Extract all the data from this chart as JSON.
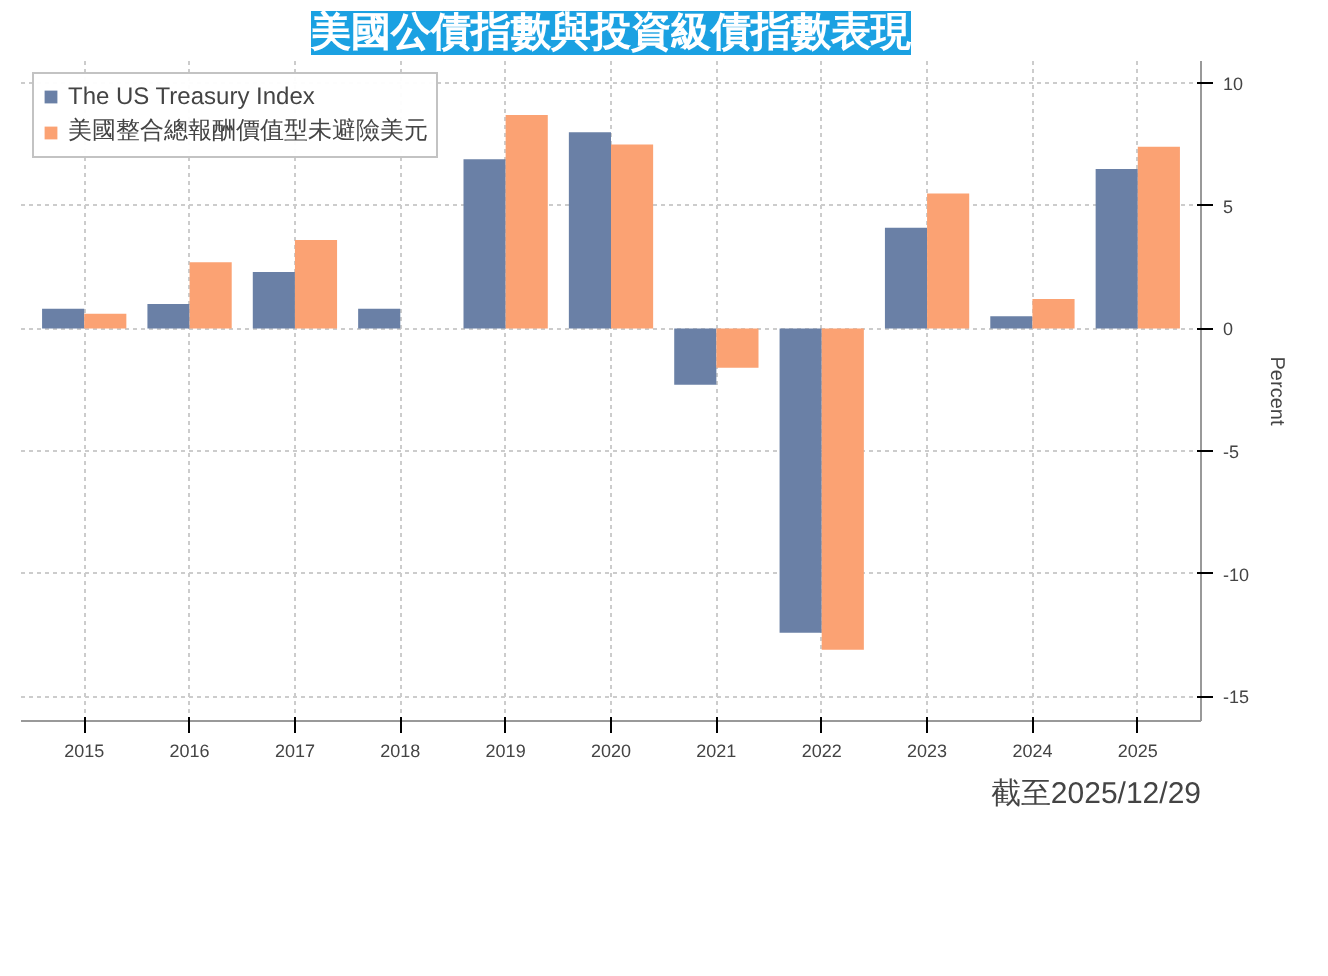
{
  "chart_data": {
    "type": "bar",
    "title": "美國公債指數與投資級債指數表現",
    "ylabel": "Percent",
    "categories": [
      "2015",
      "2016",
      "2017",
      "2018",
      "2019",
      "2020",
      "2021",
      "2022",
      "2023",
      "2024",
      "2025"
    ],
    "series": [
      {
        "name": "The US Treasury Index",
        "color": "#6a80a6",
        "values": [
          0.8,
          1.0,
          2.3,
          0.8,
          6.9,
          8.0,
          -2.3,
          -12.4,
          4.1,
          0.5,
          6.5
        ]
      },
      {
        "name": "美國整合總報酬價值型未避險美元",
        "color": "#fba273",
        "values": [
          0.6,
          2.7,
          3.6,
          0.0,
          8.7,
          7.5,
          -1.6,
          -13.1,
          5.5,
          1.2,
          7.4
        ]
      }
    ],
    "ylim": [
      -16,
      10.9
    ],
    "yticks": [
      -15,
      -10,
      -5,
      0,
      5,
      10
    ],
    "grid": true,
    "legend": "top left",
    "annotations": [
      "截至2025/12/29"
    ]
  }
}
